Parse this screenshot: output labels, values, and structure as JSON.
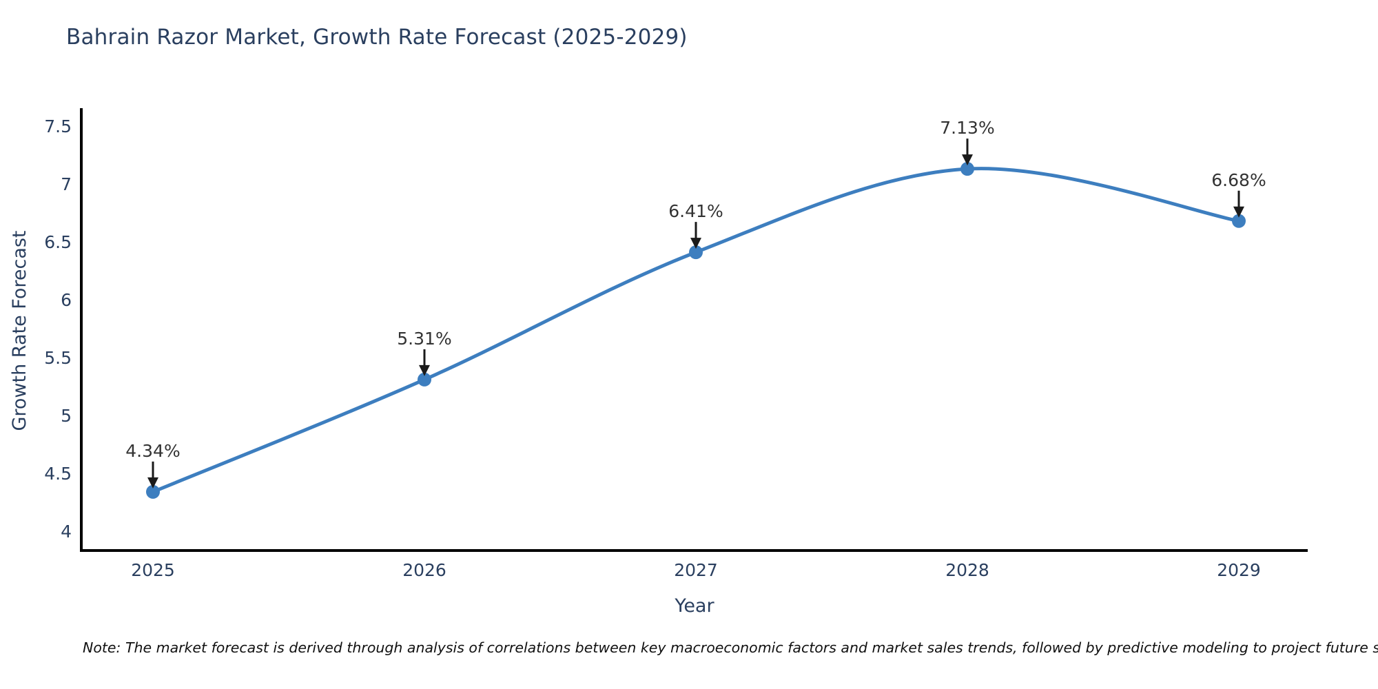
{
  "page": {
    "title": "Bahrain Razor Market, Growth Rate Forecast (2025-2029)",
    "note": "Note: The market forecast is derived through analysis of correlations between key macroeconomic factors and market sales trends, followed by predictive modeling to project future sales"
  },
  "chart_data": {
    "type": "line",
    "title": "Bahrain Razor Market, Growth Rate Forecast (2025-2029)",
    "xlabel": "Year",
    "ylabel": "Growth Rate Forecast",
    "categories": [
      "2025",
      "2026",
      "2027",
      "2028",
      "2029"
    ],
    "series": [
      {
        "name": "Growth Rate Forecast",
        "values": [
          4.34,
          5.31,
          6.41,
          7.13,
          6.68
        ]
      }
    ],
    "point_labels": [
      "4.34%",
      "5.31%",
      "6.41%",
      "7.13%",
      "6.68%"
    ],
    "yticks": [
      4,
      4.5,
      5,
      5.5,
      6,
      6.5,
      7,
      7.5
    ],
    "ylim": [
      3.83,
      7.64
    ],
    "line_shape": "spline",
    "grid": false,
    "legend": "none",
    "colors": {
      "line": "#3d7ebf",
      "marker": "#3d7ebf",
      "axis": "#000000",
      "text": "#2a3f5f",
      "annotation": "#333333",
      "arrow": "#1a1a1a",
      "note": "#111111"
    }
  }
}
